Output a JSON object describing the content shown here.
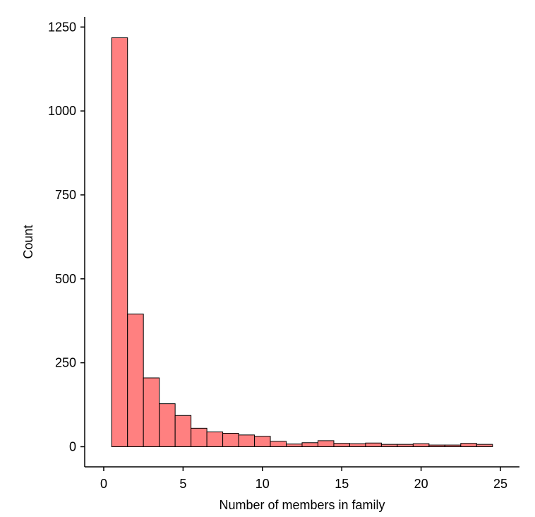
{
  "chart_data": {
    "type": "bar",
    "title": "",
    "xlabel": "Number of members in family",
    "ylabel": "Count",
    "xlim": [
      -1.2,
      26.2
    ],
    "ylim": [
      -60,
      1280
    ],
    "x_ticks": [
      0,
      5,
      10,
      15,
      20,
      25
    ],
    "y_ticks": [
      0,
      250,
      500,
      750,
      1000,
      1250
    ],
    "bin_width": 1,
    "categories": [
      1,
      2,
      3,
      4,
      5,
      6,
      7,
      8,
      9,
      10,
      11,
      12,
      13,
      14,
      15,
      16,
      17,
      18,
      19,
      20,
      21,
      22,
      23,
      24
    ],
    "values": [
      1218,
      395,
      205,
      128,
      93,
      55,
      44,
      40,
      35,
      31,
      16,
      8,
      12,
      18,
      10,
      9,
      11,
      7,
      7,
      9,
      5,
      5,
      10,
      7
    ],
    "bar_color": "#ff8080",
    "edge_color": "#000000",
    "grid": false
  }
}
